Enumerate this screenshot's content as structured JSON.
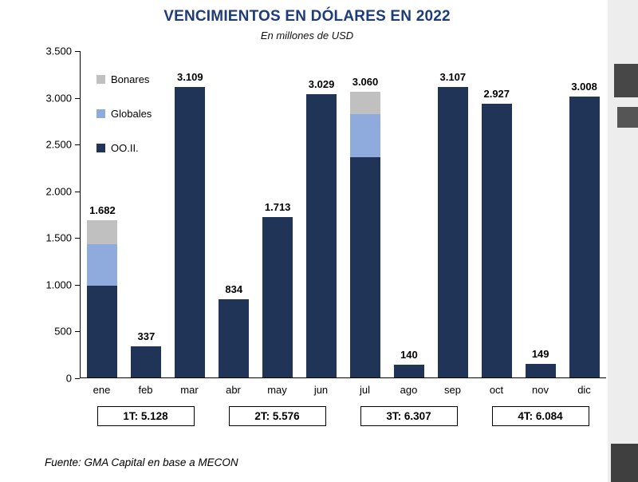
{
  "page": {
    "title": "VENCIMIENTOS EN DÓLARES EN 2022",
    "subtitle": "En millones de USD",
    "source": "Fuente: GMA Capital en base a MECON"
  },
  "colors": {
    "title_blue": "#1e3c78",
    "ooii_navy": "#203457",
    "globales_blue": "#8faadc",
    "bonares_gray": "#c0c0c0"
  },
  "chart_data": {
    "type": "bar",
    "stacked": true,
    "title": "VENCIMIENTOS EN DÓLARES EN 2022",
    "subtitle": "En millones de USD",
    "xlabel": "",
    "ylabel": "",
    "ylim": [
      0,
      3500
    ],
    "grid": false,
    "legend_position": "inside-top-left",
    "y_ticks": [
      {
        "label": "3.500",
        "value": 3500
      },
      {
        "label": "3.000",
        "value": 3000
      },
      {
        "label": "2.500",
        "value": 2500
      },
      {
        "label": "2.000",
        "value": 2000
      },
      {
        "label": "1.500",
        "value": 1500
      },
      {
        "label": "1.000",
        "value": 1000
      },
      {
        "label": "500",
        "value": 500
      },
      {
        "label": "0",
        "value": 0
      }
    ],
    "categories": [
      "ene",
      "feb",
      "mar",
      "abr",
      "may",
      "jun",
      "jul",
      "ago",
      "sep",
      "oct",
      "nov",
      "dic"
    ],
    "series": [
      {
        "name": "OO.II.",
        "color": "#203457",
        "values": [
          980,
          337,
          3109,
          834,
          1713,
          3029,
          2360,
          140,
          3107,
          2927,
          149,
          3008
        ]
      },
      {
        "name": "Globales",
        "color": "#8faadc",
        "values": [
          450,
          0,
          0,
          0,
          0,
          0,
          460,
          0,
          0,
          0,
          0,
          0
        ]
      },
      {
        "name": "Bonares",
        "color": "#c0c0c0",
        "values": [
          252,
          0,
          0,
          0,
          0,
          0,
          240,
          0,
          0,
          0,
          0,
          0
        ]
      }
    ],
    "bar_totals": [
      1682,
      337,
      3109,
      834,
      1713,
      3029,
      3060,
      140,
      3107,
      2927,
      149,
      3008
    ],
    "bar_labels": [
      "1.682",
      "337",
      "3.109",
      "834",
      "1.713",
      "3.029",
      "3.060",
      "140",
      "3.107",
      "2.927",
      "149",
      "3.008"
    ],
    "legend": [
      {
        "label": "Bonares",
        "color": "#c0c0c0"
      },
      {
        "label": "Globales",
        "color": "#8faadc"
      },
      {
        "label": "OO.II.",
        "color": "#203457"
      }
    ]
  },
  "quarter_totals": [
    {
      "label": "1T: 5.128"
    },
    {
      "label": "2T: 5.576"
    },
    {
      "label": "3T: 6.307"
    },
    {
      "label": "4T: 6.084"
    }
  ]
}
